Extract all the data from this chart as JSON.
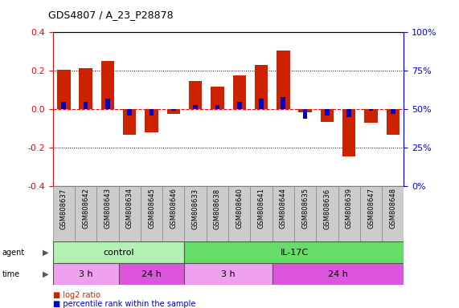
{
  "title": "GDS4807 / A_23_P28878",
  "samples": [
    "GSM808637",
    "GSM808642",
    "GSM808643",
    "GSM808634",
    "GSM808645",
    "GSM808646",
    "GSM808633",
    "GSM808638",
    "GSM808640",
    "GSM808641",
    "GSM808644",
    "GSM808635",
    "GSM808636",
    "GSM808639",
    "GSM808647",
    "GSM808648"
  ],
  "log2_ratio": [
    0.205,
    0.215,
    0.25,
    -0.13,
    -0.12,
    -0.025,
    0.148,
    0.12,
    0.175,
    0.23,
    0.305,
    -0.015,
    -0.065,
    -0.245,
    -0.07,
    -0.13
  ],
  "percentile_rank": [
    55,
    55,
    57,
    46,
    46,
    49,
    53,
    53,
    55,
    57,
    58,
    44,
    46,
    45,
    49,
    47
  ],
  "agent_groups": [
    {
      "label": "control",
      "start": 0,
      "end": 6,
      "color": "#b3f0b3"
    },
    {
      "label": "IL-17C",
      "start": 6,
      "end": 16,
      "color": "#66dd66"
    }
  ],
  "time_groups": [
    {
      "label": "3 h",
      "start": 0,
      "end": 3,
      "color": "#f0a0f0"
    },
    {
      "label": "24 h",
      "start": 3,
      "end": 6,
      "color": "#dd55dd"
    },
    {
      "label": "3 h",
      "start": 6,
      "end": 10,
      "color": "#f0a0f0"
    },
    {
      "label": "24 h",
      "start": 10,
      "end": 16,
      "color": "#dd55dd"
    }
  ],
  "ylim": [
    -0.4,
    0.4
  ],
  "yticks_left": [
    -0.4,
    -0.2,
    0.0,
    0.2,
    0.4
  ],
  "bar_color_red": "#cc2200",
  "bar_color_blue": "#0000cc",
  "legend_red": "log2 ratio",
  "legend_blue": "percentile rank within the sample",
  "label_cell_color": "#cccccc",
  "label_cell_edge": "#888888"
}
